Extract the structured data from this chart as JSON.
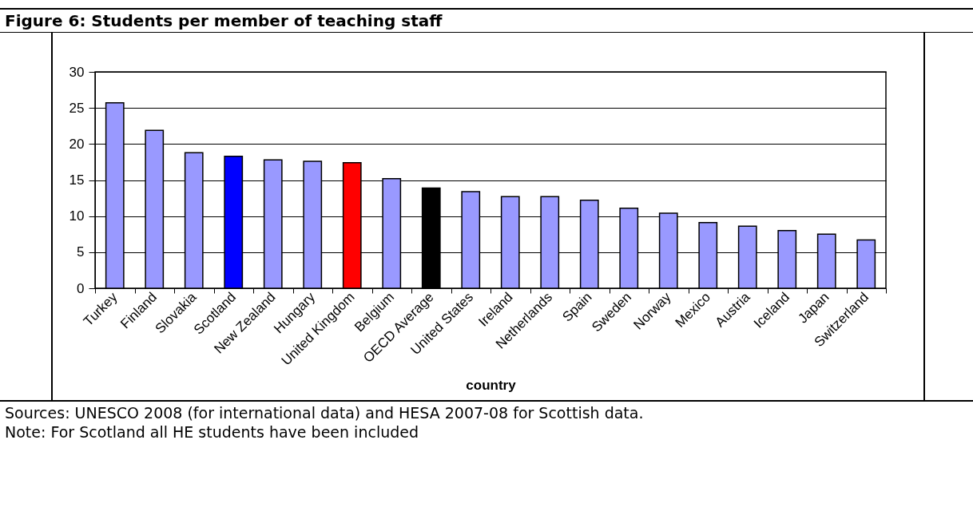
{
  "chart_data": {
    "type": "bar",
    "title": "Figure 6: Students per member of teaching staff",
    "xlabel": "country",
    "categories": [
      "Turkey",
      "Finland",
      "Slovakia",
      "Scotland",
      "New Zealand",
      "Hungary",
      "United Kingdom",
      "Belgium",
      "OECD Average",
      "United States",
      "Ireland",
      "Netherlands",
      "Spain",
      "Sweden",
      "Norway",
      "Mexico",
      "Austria",
      "Iceland",
      "Japan",
      "Switzerland"
    ],
    "values": [
      25.7,
      21.9,
      18.8,
      18.3,
      17.8,
      17.6,
      17.4,
      15.2,
      13.9,
      13.4,
      12.7,
      12.7,
      12.2,
      11.1,
      10.4,
      9.1,
      8.6,
      8.0,
      7.5,
      6.7
    ],
    "colors": [
      "#9999ff",
      "#9999ff",
      "#9999ff",
      "#0000ff",
      "#9999ff",
      "#9999ff",
      "#ff0000",
      "#9999ff",
      "#000000",
      "#9999ff",
      "#9999ff",
      "#9999ff",
      "#9999ff",
      "#9999ff",
      "#9999ff",
      "#9999ff",
      "#9999ff",
      "#9999ff",
      "#9999ff",
      "#9999ff"
    ],
    "ylim": [
      0,
      30
    ],
    "yticks": [
      0,
      5,
      10,
      15,
      20,
      25,
      30
    ],
    "grid": "y",
    "annotations": [
      "Sources: UNESCO 2008 (for international data) and HESA 2007-08 for Scottish data.",
      "Note: For Scotland all HE students have been included"
    ]
  }
}
